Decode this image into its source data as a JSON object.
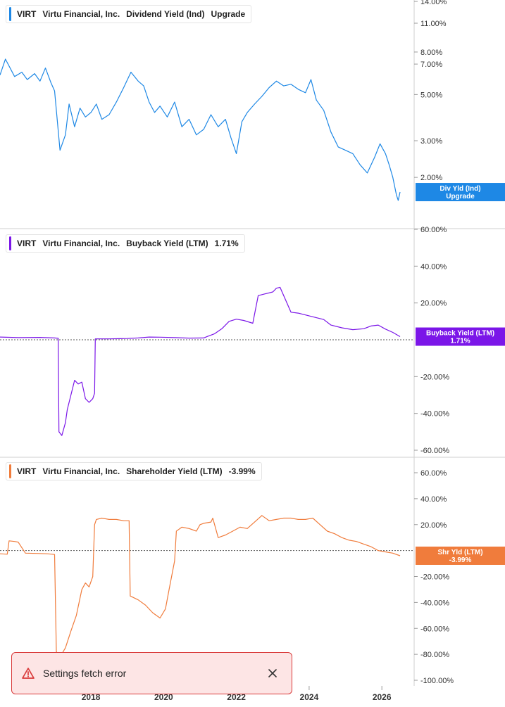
{
  "colors": {
    "dividend": "#1e88e5",
    "buyback": "#7b16e8",
    "shareholder": "#f07c3c",
    "tag_dividend_bg": "#1e88e5",
    "tag_buyback_bg": "#7b16e8",
    "tag_shareholder_bg": "#f07c3c",
    "toast_bg": "#fde5e5",
    "toast_border": "#d93a3a"
  },
  "chart_data": [
    {
      "type": "line",
      "legend": {
        "ticker": "VIRT",
        "company": "Virtu Financial, Inc.",
        "metric": "Dividend Yield (Ind)",
        "value": "Upgrade"
      },
      "tag": {
        "line1": "Div Yld (Ind)",
        "line2": "Upgrade"
      },
      "scale": "log",
      "ylim": [
        1.4,
        14
      ],
      "yticks": [
        "14.00%",
        "11.00%",
        "8.00%",
        "7.00%",
        "5.00%",
        "3.00%",
        "2.00%"
      ],
      "ytick_values": [
        14,
        11,
        8,
        7,
        5,
        3,
        2
      ],
      "x": [
        2015.5,
        2015.65,
        2015.9,
        2016.1,
        2016.25,
        2016.45,
        2016.6,
        2016.75,
        2016.9,
        2017.0,
        2017.15,
        2017.3,
        2017.4,
        2017.55,
        2017.7,
        2017.85,
        2018.0,
        2018.15,
        2018.3,
        2018.5,
        2018.7,
        2018.9,
        2019.1,
        2019.3,
        2019.45,
        2019.6,
        2019.75,
        2019.9,
        2020.1,
        2020.3,
        2020.5,
        2020.7,
        2020.9,
        2021.1,
        2021.3,
        2021.5,
        2021.7,
        2021.85,
        2022.0,
        2022.15,
        2022.3,
        2022.5,
        2022.7,
        2022.9,
        2023.1,
        2023.3,
        2023.5,
        2023.7,
        2023.9,
        2024.05,
        2024.2,
        2024.4,
        2024.6,
        2024.8,
        2025.0,
        2025.2,
        2025.4,
        2025.6,
        2025.8,
        2025.95,
        2026.1,
        2026.2,
        2026.3,
        2026.4,
        2026.45,
        2026.5
      ],
      "y": [
        6.2,
        7.4,
        6.1,
        6.4,
        5.9,
        6.3,
        5.8,
        6.7,
        5.7,
        5.2,
        2.7,
        3.2,
        4.5,
        3.5,
        4.3,
        3.9,
        4.1,
        4.5,
        3.8,
        4.0,
        4.6,
        5.4,
        6.4,
        5.8,
        5.5,
        4.6,
        4.1,
        4.4,
        3.9,
        4.6,
        3.5,
        3.8,
        3.2,
        3.4,
        4.0,
        3.5,
        3.8,
        3.1,
        2.6,
        3.7,
        4.1,
        4.5,
        4.9,
        5.4,
        5.8,
        5.5,
        5.6,
        5.3,
        5.1,
        5.9,
        4.7,
        4.2,
        3.3,
        2.8,
        2.7,
        2.6,
        2.3,
        2.1,
        2.5,
        2.9,
        2.6,
        2.3,
        2.0,
        1.65,
        1.55,
        1.7
      ]
    },
    {
      "type": "line",
      "legend": {
        "ticker": "VIRT",
        "company": "Virtu Financial, Inc.",
        "metric": "Buyback Yield (LTM)",
        "value": "1.71%"
      },
      "tag": {
        "line1": "Buyback Yield (LTM)",
        "line2": "1.71%"
      },
      "scale": "linear",
      "ylim": [
        -60,
        60
      ],
      "yticks": [
        "60.00%",
        "40.00%",
        "20.00%",
        "-20.00%",
        "-40.00%",
        "-60.00%"
      ],
      "ytick_values": [
        60,
        40,
        20,
        -20,
        -40,
        -60
      ],
      "x": [
        2015.5,
        2016.0,
        2016.6,
        2017.0,
        2017.1,
        2017.12,
        2017.2,
        2017.3,
        2017.35,
        2017.45,
        2017.55,
        2017.65,
        2017.75,
        2017.85,
        2017.95,
        2018.05,
        2018.1,
        2018.12,
        2018.5,
        2018.8,
        2019.0,
        2019.3,
        2019.6,
        2019.9,
        2020.3,
        2020.7,
        2021.1,
        2021.2,
        2021.4,
        2021.6,
        2021.8,
        2022.0,
        2022.2,
        2022.45,
        2022.6,
        2022.8,
        2023.0,
        2023.05,
        2023.1,
        2023.2,
        2023.5,
        2023.7,
        2023.9,
        2024.1,
        2024.4,
        2024.6,
        2024.9,
        2025.2,
        2025.5,
        2025.7,
        2025.9,
        2026.1,
        2026.3,
        2026.5
      ],
      "y": [
        1.5,
        1.2,
        1.3,
        1.0,
        0.8,
        -50,
        -52,
        -45,
        -38,
        -30,
        -22,
        -24,
        -23,
        -32,
        -34,
        -32,
        -29,
        0.5,
        0.5,
        0.6,
        0.7,
        1.0,
        1.5,
        1.4,
        1.2,
        0.9,
        1.0,
        1.8,
        3.3,
        6.0,
        10.0,
        11.2,
        10.5,
        9.0,
        24.0,
        25.0,
        26.0,
        27.0,
        28.0,
        28.5,
        15.0,
        14.5,
        13.5,
        12.5,
        11.0,
        8.0,
        6.5,
        5.5,
        6.0,
        7.5,
        8.0,
        5.8,
        4.0,
        1.71
      ]
    },
    {
      "type": "line",
      "legend": {
        "ticker": "VIRT",
        "company": "Virtu Financial, Inc.",
        "metric": "Shareholder Yield (LTM)",
        "value": "-3.99%"
      },
      "tag": {
        "line1": "Shr Yld (LTM)",
        "line2": "-3.99%"
      },
      "scale": "linear",
      "ylim": [
        -100,
        60
      ],
      "yticks": [
        "60.00%",
        "40.00%",
        "20.00%",
        "-20.00%",
        "-40.00%",
        "-60.00%",
        "-80.00%",
        "-100.00%"
      ],
      "ytick_values": [
        60,
        40,
        20,
        -20,
        -40,
        -60,
        -80,
        -100
      ],
      "x": [
        2015.5,
        2015.7,
        2015.75,
        2015.9,
        2016.0,
        2016.2,
        2016.5,
        2016.8,
        2017.0,
        2017.05,
        2017.1,
        2017.15,
        2017.3,
        2017.45,
        2017.6,
        2017.75,
        2017.85,
        2017.95,
        2018.05,
        2018.1,
        2018.15,
        2018.3,
        2018.5,
        2018.7,
        2018.9,
        2019.05,
        2019.08,
        2019.3,
        2019.5,
        2019.7,
        2019.9,
        2020.05,
        2020.15,
        2020.3,
        2020.35,
        2020.5,
        2020.7,
        2020.9,
        2021.0,
        2021.1,
        2021.3,
        2021.35,
        2021.5,
        2021.7,
        2021.9,
        2022.1,
        2022.3,
        2022.5,
        2022.7,
        2022.9,
        2023.1,
        2023.3,
        2023.5,
        2023.7,
        2023.9,
        2024.1,
        2024.3,
        2024.5,
        2024.7,
        2024.9,
        2025.1,
        2025.3,
        2025.5,
        2025.7,
        2025.9,
        2026.1,
        2026.3,
        2026.5
      ],
      "y": [
        -2.5,
        -2.8,
        7.5,
        7.0,
        6.5,
        -2.0,
        -2.2,
        -2.5,
        -3.0,
        -78,
        -80,
        -82,
        -75,
        -62,
        -50,
        -30,
        -25,
        -28,
        -20,
        20,
        24,
        25,
        24,
        24,
        23,
        23,
        -35,
        -38,
        -42,
        -48,
        -52,
        -45,
        -30,
        -8,
        15,
        18,
        17,
        15,
        20,
        21,
        22,
        25,
        10,
        12,
        15,
        18,
        17,
        22,
        27,
        23,
        24,
        25,
        25,
        24,
        24,
        25,
        20,
        15,
        13,
        10,
        8,
        7,
        5,
        3,
        0,
        -1,
        -2,
        -3.99
      ]
    }
  ],
  "x_axis": {
    "ticks": [
      "2018",
      "2020",
      "2022",
      "2024",
      "2026"
    ],
    "tick_values": [
      2018,
      2020,
      2022,
      2024,
      2026
    ]
  },
  "toast": {
    "message": "Settings fetch error",
    "warn_icon": "warning-triangle-icon",
    "close_icon": "close-icon"
  }
}
